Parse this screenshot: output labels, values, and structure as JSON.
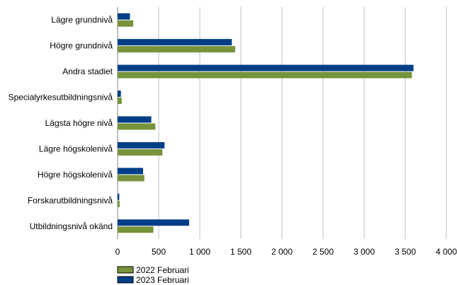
{
  "chart_data": {
    "type": "bar",
    "orientation": "horizontal",
    "title": "",
    "xlabel": "",
    "ylabel": "",
    "categories": [
      "Lägre grundnivå",
      "Högre grundnivå",
      "Andra stadiet",
      "Specialyrkesutbildningsnivå",
      "Lägsta högre nivå",
      "Lägre högskolenivå",
      "Högre högskolenivå",
      "Forskarutbildningsnivå",
      "Utbildningsnivå okänd"
    ],
    "series": [
      {
        "name": "2023 Februari",
        "color": "#003f87",
        "values": [
          150,
          1390,
          3600,
          40,
          410,
          570,
          310,
          20,
          870
        ]
      },
      {
        "name": "2022 Februari",
        "color": "#77933c",
        "values": [
          190,
          1430,
          3580,
          50,
          460,
          545,
          325,
          25,
          435
        ]
      }
    ],
    "xlim": [
      0,
      4000
    ],
    "xticks": [
      0,
      500,
      1000,
      1500,
      2000,
      2500,
      3000,
      3500,
      4000
    ],
    "xtick_labels": [
      "0",
      "500",
      "1 000",
      "1 500",
      "2 000",
      "2 500",
      "3 000",
      "3 500",
      "4 000"
    ],
    "grid": "vertical",
    "legend": {
      "placement": "bottom-left",
      "entries": [
        "2022 Februari",
        "2023 Februari"
      ]
    }
  }
}
